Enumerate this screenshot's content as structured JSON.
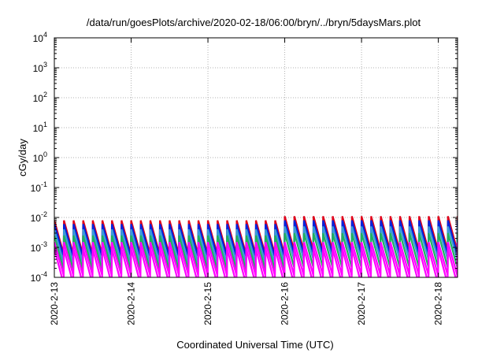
{
  "chart_data": {
    "type": "line",
    "title": "/data/run/goesPlots/archive/2020-02-18/06:00/bryn/../bryn/5daysMars.plot",
    "xlabel": "Coordinated Universal Time (UTC)",
    "ylabel": "cGy/day",
    "yscale": "log",
    "ylim": [
      0.0001,
      10000
    ],
    "xlim": [
      "2020-02-13 00:00",
      "2020-02-18 06:00"
    ],
    "xticks": [
      "2020-2-13",
      "2020-2-14",
      "2020-2-15",
      "2020-2-16",
      "2020-2-17",
      "2020-2-18"
    ],
    "yticks": [
      {
        "base": "10",
        "exp": "-4"
      },
      {
        "base": "10",
        "exp": "-3"
      },
      {
        "base": "10",
        "exp": "-2"
      },
      {
        "base": "10",
        "exp": "-1"
      },
      {
        "base": "10",
        "exp": "0"
      },
      {
        "base": "10",
        "exp": "1"
      },
      {
        "base": "10",
        "exp": "2"
      },
      {
        "base": "10",
        "exp": "3"
      },
      {
        "base": "10",
        "exp": "4"
      }
    ],
    "grid": true,
    "legend": "none",
    "sawtooth": {
      "period_hours": 3,
      "start_hour": 0,
      "day2_start_hour": 72
    },
    "series": [
      {
        "color": "#e0001a",
        "peak": [
          0.008,
          0.011
        ],
        "trough": [
          0.0006,
          0.0008
        ]
      },
      {
        "color": "#0022dd",
        "peak": [
          0.006,
          0.008
        ],
        "trough": [
          0.0005,
          0.0006
        ]
      },
      {
        "color": "#3a9ad9",
        "peak": [
          0.004,
          0.005
        ],
        "trough": [
          0.0003,
          0.0004
        ]
      },
      {
        "color": "#1fb060",
        "peak": [
          0.0025,
          0.003
        ],
        "trough": [
          0.00018,
          0.00022
        ]
      },
      {
        "color": "#ff00ff",
        "peak": [
          0.0015,
          0.0015
        ],
        "trough": [
          0.00012,
          0.00012
        ]
      },
      {
        "color": "#ff00ff",
        "peak": [
          0.0009,
          0.0009
        ],
        "trough": [
          6e-05,
          6e-05
        ]
      }
    ]
  }
}
